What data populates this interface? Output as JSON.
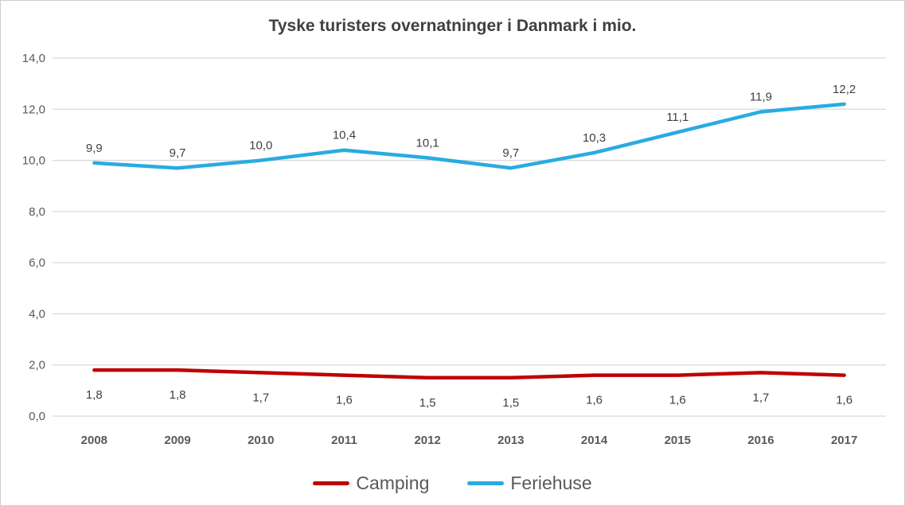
{
  "chart": {
    "title": "Tyske turisters overnatninger i Danmark i mio."
  },
  "chart_data": {
    "type": "line",
    "title": "Tyske turisters overnatninger i Danmark i mio.",
    "categories": [
      "2008",
      "2009",
      "2010",
      "2011",
      "2012",
      "2013",
      "2014",
      "2015",
      "2016",
      "2017"
    ],
    "series": [
      {
        "name": "Camping",
        "color": "#c00000",
        "values": [
          1.8,
          1.8,
          1.7,
          1.6,
          1.5,
          1.5,
          1.6,
          1.6,
          1.7,
          1.6
        ],
        "labels": [
          "1,8",
          "1,8",
          "1,7",
          "1,6",
          "1,5",
          "1,5",
          "1,6",
          "1,6",
          "1,7",
          "1,6"
        ],
        "label_position": "below"
      },
      {
        "name": "Feriehuse",
        "color": "#29abe2",
        "values": [
          9.9,
          9.7,
          10.0,
          10.4,
          10.1,
          9.7,
          10.3,
          11.1,
          11.9,
          12.2
        ],
        "labels": [
          "9,9",
          "9,7",
          "10,0",
          "10,4",
          "10,1",
          "9,7",
          "10,3",
          "11,1",
          "11,9",
          "12,2"
        ],
        "label_position": "above"
      }
    ],
    "xlabel": "",
    "ylabel": "",
    "ylim": [
      0,
      14
    ],
    "yticks": [
      0,
      2,
      4,
      6,
      8,
      10,
      12,
      14
    ],
    "ytick_labels": [
      "0,0",
      "2,0",
      "4,0",
      "6,0",
      "8,0",
      "10,0",
      "12,0",
      "14,0"
    ],
    "grid": true,
    "gridline_color": "#d9d9d9",
    "legend_position": "bottom"
  },
  "legend": {
    "items": [
      {
        "label": "Camping",
        "color": "#c00000"
      },
      {
        "label": "Feriehuse",
        "color": "#29abe2"
      }
    ]
  }
}
